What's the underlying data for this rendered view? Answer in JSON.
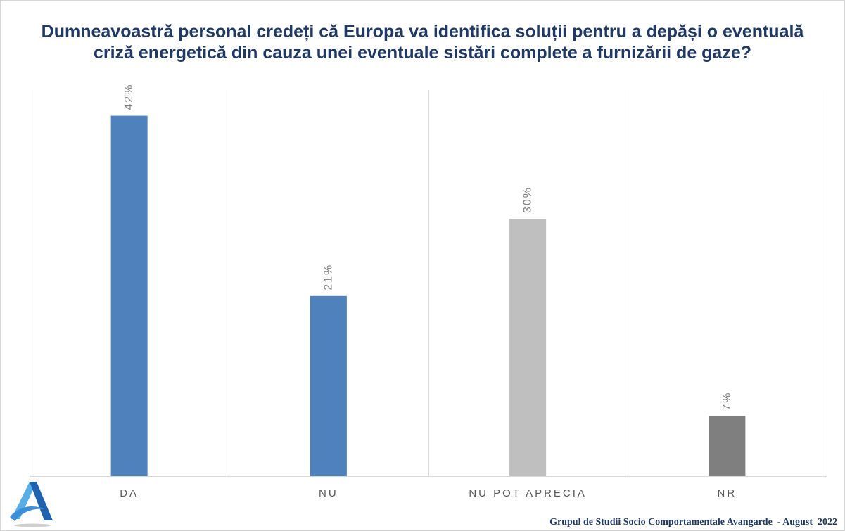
{
  "chart_data": {
    "type": "bar",
    "title": "Dumneavoastră personal credeți că Europa va identifica soluții pentru a depăși o eventuală\ncriză energetică din cauza unei eventuale sistări complete a furnizării de gaze?",
    "categories": [
      "DA",
      "NU",
      "NU POT APRECIA",
      "NR"
    ],
    "values": [
      42,
      21,
      30,
      7
    ],
    "data_labels": [
      "42%",
      "21%",
      "30%",
      "7%"
    ],
    "colors": [
      "#4F81BD",
      "#4F81BD",
      "#BFBFBF",
      "#7F7F7F"
    ],
    "xlabel": "",
    "ylabel": "",
    "ylim": [
      0,
      45
    ],
    "grid": false,
    "category_separators": true,
    "legend": false
  },
  "theme": {
    "title_color": "#1F3864",
    "footer_color": "#1F3864"
  },
  "footer": {
    "credit": "Grupul de Studii Socio Comportamentale Avangarde  - August  2022"
  },
  "logo": {
    "icon": "avangarde-a-logo-icon"
  }
}
